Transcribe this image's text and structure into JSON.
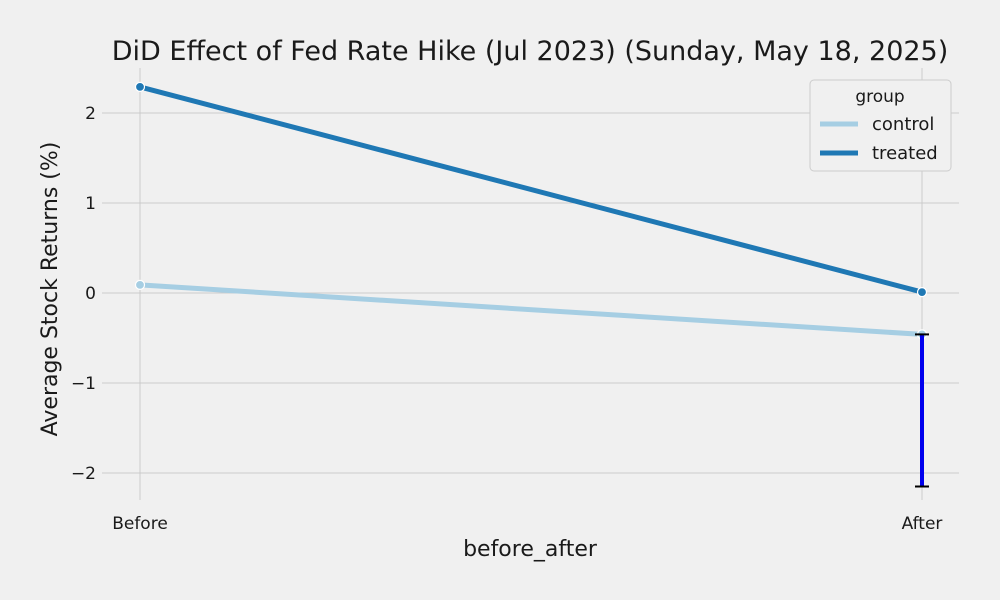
{
  "chart_data": {
    "type": "line",
    "title": "DiD Effect of Fed Rate Hike (Jul 2023) (Sunday, May 18, 2025)",
    "xlabel": "before_after",
    "ylabel": "Average Stock Returns (%)",
    "categories": [
      "Before",
      "After"
    ],
    "ylim": [
      -2.3,
      2.5
    ],
    "yticks": [
      -2,
      -1,
      0,
      1,
      2
    ],
    "ytick_labels": [
      "−2",
      "−1",
      "0",
      "1",
      "2"
    ],
    "grid": true,
    "legend": {
      "title": "group",
      "placement": "top-right"
    },
    "series": [
      {
        "name": "control",
        "color": "#a6cee3",
        "values": [
          0.09,
          -0.46
        ]
      },
      {
        "name": "treated",
        "color": "#1f78b4",
        "values": [
          2.29,
          0.01
        ]
      }
    ],
    "annotation": {
      "type": "error-bar",
      "category": "After",
      "from": -0.46,
      "to": -2.15,
      "color": "#0000ee"
    }
  }
}
